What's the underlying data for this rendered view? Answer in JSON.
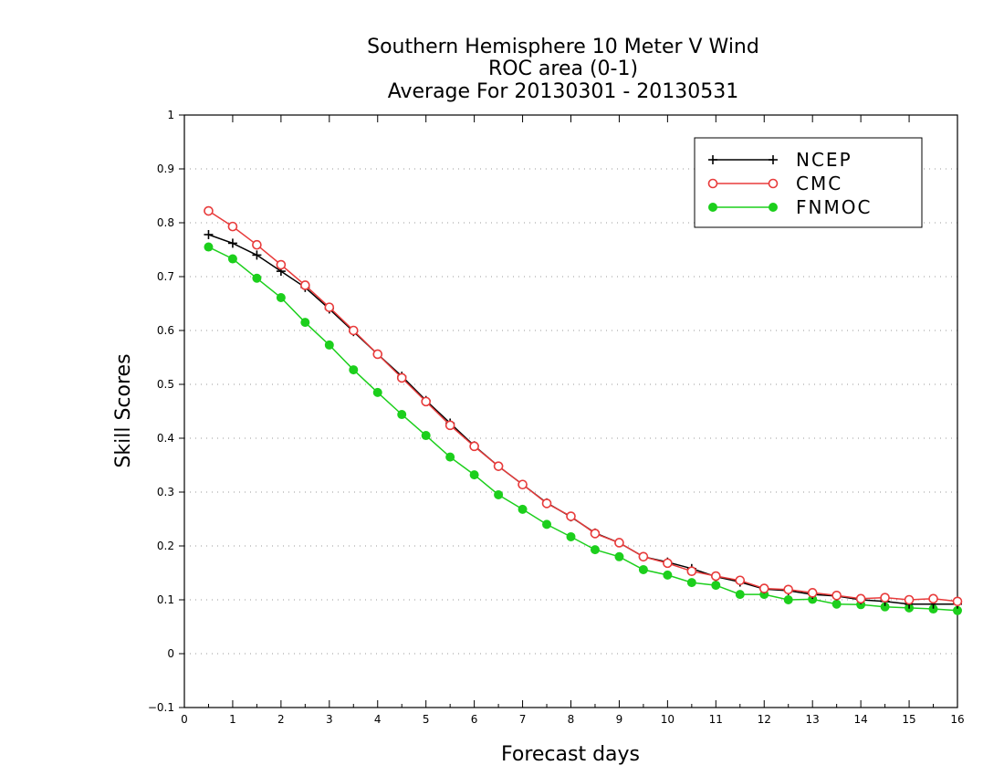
{
  "chart_data": {
    "type": "line",
    "title": [
      "Southern Hemisphere 10 Meter V Wind",
      "ROC area (0-1)",
      "Average For 20130301 - 20130531"
    ],
    "xlabel": "Forecast days",
    "ylabel": "Skill Scores",
    "xlim": [
      0,
      16
    ],
    "ylim": [
      -0.1,
      1
    ],
    "x_ticks": [
      "0",
      "1",
      "2",
      "3",
      "4",
      "5",
      "6",
      "7",
      "8",
      "9",
      "10",
      "11",
      "12",
      "13",
      "14",
      "15",
      "16"
    ],
    "y_ticks": [
      "−0.1",
      "0",
      "0.1",
      "0.2",
      "0.3",
      "0.4",
      "0.5",
      "0.6",
      "0.7",
      "0.8",
      "0.9",
      "1"
    ],
    "grid": "horizontal-dotted",
    "legend_position": "top-right",
    "x": [
      0.5,
      1,
      1.5,
      2,
      2.5,
      3,
      3.5,
      4,
      4.5,
      5,
      5.5,
      6,
      6.5,
      7,
      7.5,
      8,
      8.5,
      9,
      9.5,
      10,
      10.5,
      11,
      11.5,
      12,
      12.5,
      13,
      13.5,
      14,
      14.5,
      15,
      15.5,
      16
    ],
    "series": [
      {
        "name": "NCEP",
        "color": "#000000",
        "marker": "plus",
        "values": [
          0.778,
          0.762,
          0.74,
          0.71,
          0.68,
          0.64,
          0.598,
          0.556,
          0.515,
          0.47,
          0.428,
          0.386,
          0.348,
          0.314,
          0.28,
          0.254,
          0.224,
          0.206,
          0.18,
          0.17,
          0.158,
          0.143,
          0.133,
          0.12,
          0.117,
          0.11,
          0.107,
          0.1,
          0.097,
          0.092,
          0.092,
          0.092
        ]
      },
      {
        "name": "CMC",
        "color": "#e83b3b",
        "marker": "open-circle",
        "values": [
          0.822,
          0.793,
          0.759,
          0.722,
          0.684,
          0.643,
          0.6,
          0.556,
          0.512,
          0.468,
          0.424,
          0.385,
          0.348,
          0.314,
          0.279,
          0.255,
          0.223,
          0.206,
          0.18,
          0.168,
          0.153,
          0.144,
          0.136,
          0.121,
          0.119,
          0.113,
          0.108,
          0.102,
          0.104,
          0.1,
          0.102,
          0.097
        ]
      },
      {
        "name": "FNMOC",
        "color": "#1ccf1c",
        "marker": "filled-circle",
        "values": [
          0.755,
          0.733,
          0.697,
          0.661,
          0.615,
          0.573,
          0.527,
          0.485,
          0.444,
          0.405,
          0.365,
          0.332,
          0.295,
          0.268,
          0.24,
          0.217,
          0.193,
          0.18,
          0.156,
          0.146,
          0.132,
          0.127,
          0.11,
          0.11,
          0.1,
          0.101,
          0.092,
          0.091,
          0.087,
          0.085,
          0.083,
          0.08
        ]
      }
    ]
  }
}
